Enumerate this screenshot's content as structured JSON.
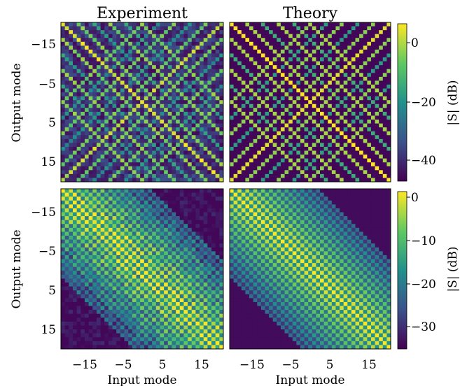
{
  "chart_data": [
    {
      "type": "heatmap",
      "title": "Experiment",
      "xlabel": "",
      "ylabel": "Output mode",
      "x_range": [
        -20,
        20
      ],
      "y_range": [
        -20,
        20
      ],
      "y_ticks": [
        "−15",
        "−5",
        "5",
        "15"
      ],
      "colorscale": "viridis",
      "structure": "X-shaped pattern: main diagonal and anti-diagonal plus parallel bands every 4 modes, noisy background",
      "value_range_db": [
        -47,
        5
      ]
    },
    {
      "type": "heatmap",
      "title": "Theory",
      "xlabel": "",
      "ylabel": "",
      "x_range": [
        -20,
        20
      ],
      "y_range": [
        -20,
        20
      ],
      "colorscale": "viridis",
      "colorbar": {
        "label": "|S| (dB)",
        "ticks": [
          "0",
          "−20",
          "−40"
        ],
        "range": [
          -47,
          5
        ]
      },
      "structure": "X-shaped pattern: main diagonal and anti-diagonal plus parallel bands every 4 modes",
      "value_range_db": [
        -47,
        5
      ]
    },
    {
      "type": "heatmap",
      "title": "",
      "xlabel": "Input mode",
      "ylabel": "Output mode",
      "x_range": [
        -20,
        20
      ],
      "y_range": [
        -20,
        20
      ],
      "x_ticks": [
        "−15",
        "−5",
        "5",
        "15"
      ],
      "y_ticks": [
        "−15",
        "−5",
        "5",
        "15"
      ],
      "colorscale": "viridis",
      "structure": "Banded diagonal with checkerboard parity pattern, decaying away from the diagonal",
      "value_range_db": [
        -35,
        1
      ]
    },
    {
      "type": "heatmap",
      "title": "",
      "xlabel": "Input mode",
      "ylabel": "",
      "x_range": [
        -20,
        20
      ],
      "y_range": [
        -20,
        20
      ],
      "x_ticks": [
        "−15",
        "−5",
        "5",
        "15"
      ],
      "colorscale": "viridis",
      "colorbar": {
        "label": "|S| (dB)",
        "ticks": [
          "0",
          "−10",
          "−20",
          "−30"
        ],
        "range": [
          -35,
          1
        ]
      },
      "structure": "Banded diagonal with checkerboard parity pattern, decaying away from the diagonal",
      "value_range_db": [
        -35,
        1
      ]
    }
  ]
}
